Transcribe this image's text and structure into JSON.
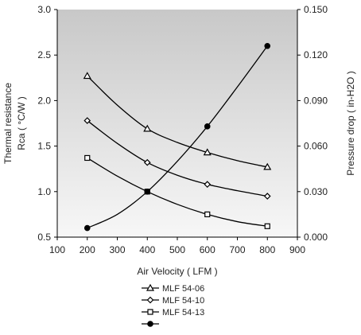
{
  "chart_data": {
    "type": "line",
    "xlabel": "Air Velocity ( LFM )",
    "ylabel_left": [
      "Thermal resistance",
      "Rca ( °C/W )"
    ],
    "ylabel_right": "Pressure drop ( in-H2O )",
    "xlim": [
      100,
      900
    ],
    "ylim_left": [
      0.5,
      3.0
    ],
    "ylim_right": [
      0.0,
      0.15
    ],
    "x_ticks": [
      "100",
      "200",
      "300",
      "400",
      "500",
      "600",
      "700",
      "800",
      "900"
    ],
    "y_left_ticks": [
      "0.5",
      "1.0",
      "1.5",
      "2.0",
      "2.5",
      "3.0"
    ],
    "y_right_ticks": [
      "0.000",
      "0.030",
      "0.060",
      "0.090",
      "0.120",
      "0.150"
    ],
    "grid": false,
    "background": "gradient-gray",
    "legend_position": "bottom",
    "series": [
      {
        "name": "MLF  54-06",
        "axis": "left",
        "marker": "triangle-open",
        "x": [
          200,
          400,
          600,
          800
        ],
        "values": [
          2.27,
          1.69,
          1.43,
          1.27
        ],
        "curve_x": [
          200,
          300,
          400,
          500,
          600,
          700,
          800
        ],
        "curve_y": [
          2.27,
          1.95,
          1.69,
          1.54,
          1.43,
          1.34,
          1.27
        ]
      },
      {
        "name": "MLF  54-10",
        "axis": "left",
        "marker": "diamond-open",
        "x": [
          200,
          400,
          600,
          800
        ],
        "values": [
          1.78,
          1.32,
          1.08,
          0.95
        ],
        "curve_x": [
          200,
          300,
          400,
          500,
          600,
          700,
          800
        ],
        "curve_y": [
          1.78,
          1.53,
          1.32,
          1.18,
          1.08,
          1.01,
          0.95
        ]
      },
      {
        "name": "MLF  54-13",
        "axis": "left",
        "marker": "square-open",
        "x": [
          200,
          400,
          600,
          800
        ],
        "values": [
          1.37,
          1.0,
          0.75,
          0.62
        ],
        "curve_x": [
          200,
          300,
          400,
          500,
          600,
          700,
          800
        ],
        "curve_y": [
          1.37,
          1.17,
          1.0,
          0.86,
          0.75,
          0.67,
          0.62
        ]
      },
      {
        "name": "",
        "axis": "right",
        "marker": "circle-filled",
        "x": [
          200,
          400,
          600,
          800
        ],
        "values": [
          0.006,
          0.03,
          0.073,
          0.126
        ],
        "curve_x": [
          200,
          300,
          400,
          500,
          600,
          700,
          800
        ],
        "curve_y": [
          0.006,
          0.015,
          0.03,
          0.05,
          0.073,
          0.099,
          0.126
        ]
      }
    ],
    "colors": {
      "line": "#000000",
      "bg_top": "#c8c8c8",
      "bg_bottom": "#f7f7f7"
    }
  }
}
